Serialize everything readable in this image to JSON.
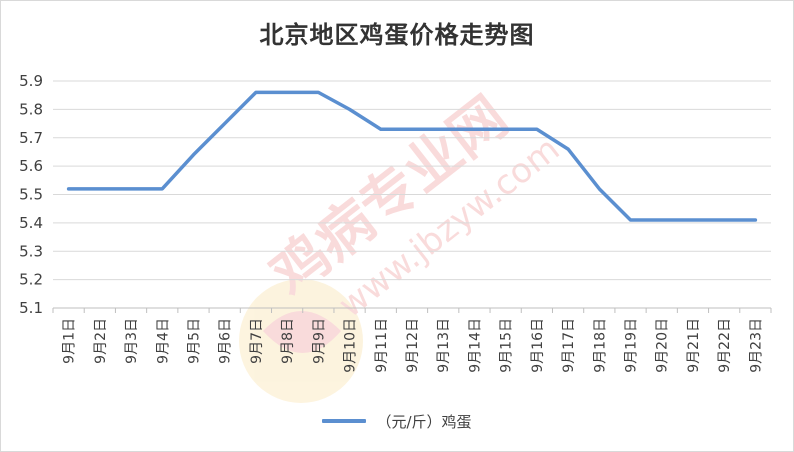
{
  "chart_data": {
    "type": "line",
    "title": "北京地区鸡蛋价格走势图",
    "categories": [
      "9月1日",
      "9月2日",
      "9月3日",
      "9月4日",
      "9月5日",
      "9月6日",
      "9月7日",
      "9月8日",
      "9月9日",
      "9月10日",
      "9月11日",
      "9月12日",
      "9月13日",
      "9月14日",
      "9月15日",
      "9月16日",
      "9月17日",
      "9月18日",
      "9月19日",
      "9月20日",
      "9月21日",
      "9月22日",
      "9月23日"
    ],
    "series": [
      {
        "name": "（元/斤）鸡蛋",
        "color": "#5b8fd0",
        "values": [
          5.52,
          5.52,
          5.52,
          5.52,
          5.64,
          5.75,
          5.86,
          5.86,
          5.86,
          5.8,
          5.73,
          5.73,
          5.73,
          5.73,
          5.73,
          5.73,
          5.66,
          5.52,
          5.41,
          5.41,
          5.41,
          5.41,
          5.41
        ]
      }
    ],
    "ylim": [
      5.1,
      5.9
    ],
    "yticks": [
      "5.1",
      "5.2",
      "5.3",
      "5.4",
      "5.5",
      "5.6",
      "5.7",
      "5.8",
      "5.9"
    ],
    "xlabel": "",
    "ylabel": "",
    "grid": true,
    "legend": "bottom"
  },
  "watermark": {
    "text": "鸡病专业网",
    "url": "www.jbzyw.com"
  },
  "colors": {
    "line": "#5b8fd0",
    "grid": "#d9d9d9",
    "watermark": "#e8a0a0"
  }
}
